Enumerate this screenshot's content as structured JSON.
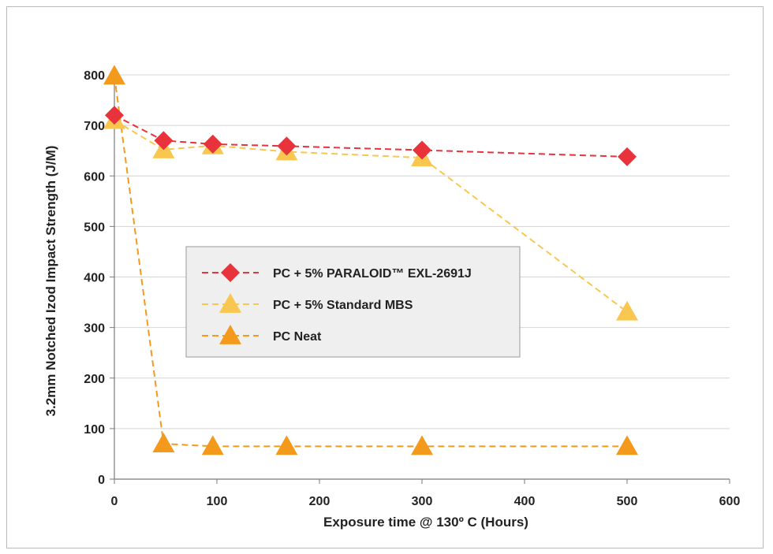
{
  "chart_data": {
    "type": "line",
    "title": "",
    "xlabel": "Exposure time @ 130º C (Hours)",
    "ylabel": "3.2mm Notched Izod Impact Strength (J/M)",
    "xlim": [
      0,
      600
    ],
    "ylim": [
      0,
      800
    ],
    "xticks": [
      0,
      100,
      200,
      300,
      400,
      500,
      600
    ],
    "yticks": [
      0,
      100,
      200,
      300,
      400,
      500,
      600,
      700,
      800
    ],
    "grid": "horizontal",
    "legend_position": "center-left",
    "series": [
      {
        "name": "PC + 5% PARALOID™ EXL-2691J",
        "marker": "diamond",
        "color": "#e8323c",
        "x": [
          0,
          48,
          96,
          168,
          300,
          500
        ],
        "y": [
          720,
          670,
          663,
          659,
          651,
          638
        ]
      },
      {
        "name": "PC + 5% Standard MBS",
        "marker": "triangle",
        "color": "#f9c74f",
        "x": [
          0,
          48,
          96,
          168,
          300,
          500
        ],
        "y": [
          710,
          652,
          660,
          648,
          636,
          331
        ]
      },
      {
        "name": "PC Neat",
        "marker": "triangle",
        "color": "#f39a1c",
        "x": [
          0,
          48,
          96,
          168,
          300,
          500
        ],
        "y": [
          798,
          70,
          65,
          65,
          65,
          65
        ]
      }
    ]
  }
}
